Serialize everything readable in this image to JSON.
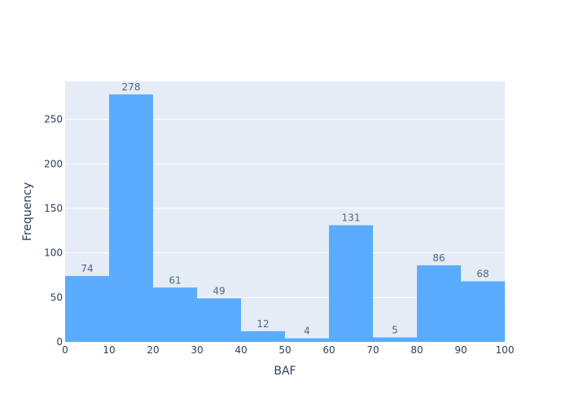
{
  "chart_data": {
    "type": "bar",
    "bins": [
      {
        "start": 0,
        "end": 10,
        "value": 74
      },
      {
        "start": 10,
        "end": 20,
        "value": 278
      },
      {
        "start": 20,
        "end": 30,
        "value": 61
      },
      {
        "start": 30,
        "end": 40,
        "value": 49
      },
      {
        "start": 40,
        "end": 50,
        "value": 12
      },
      {
        "start": 50,
        "end": 60,
        "value": 4
      },
      {
        "start": 60,
        "end": 70,
        "value": 131
      },
      {
        "start": 70,
        "end": 80,
        "value": 5
      },
      {
        "start": 80,
        "end": 90,
        "value": 86
      },
      {
        "start": 90,
        "end": 100,
        "value": 68
      }
    ],
    "xlabel": "BAF",
    "ylabel": "Frequency",
    "xlim": [
      0,
      100
    ],
    "ylim": [
      0,
      292.6
    ],
    "xticks": [
      0,
      10,
      20,
      30,
      40,
      50,
      60,
      70,
      80,
      90,
      100
    ],
    "yticks": [
      0,
      50,
      100,
      150,
      200,
      250
    ],
    "colors": {
      "bar": "#4da6ff",
      "plot_background": "#e5ecf6",
      "grid": "#ffffff",
      "text": "#2a3f5f",
      "bar_label": "#506784"
    },
    "grid": true
  }
}
